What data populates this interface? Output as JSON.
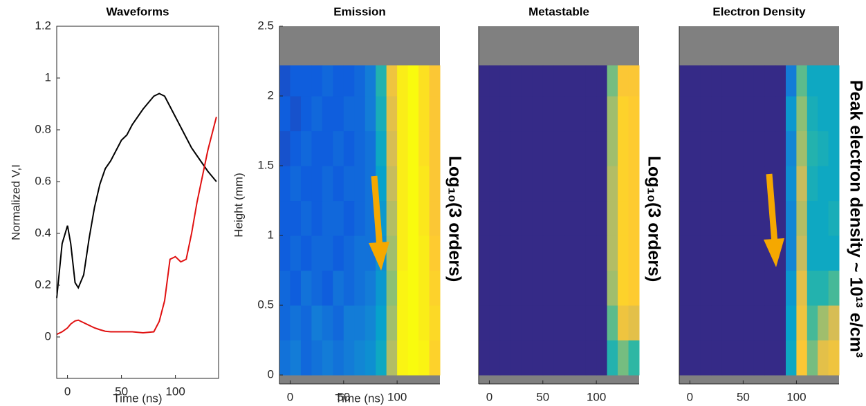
{
  "chart_data": [
    {
      "type": "line",
      "title": "Waveforms",
      "xlabel": "Time (ns)",
      "ylabel": "Normalized V,I",
      "x": [
        -10,
        -5,
        0,
        3,
        7,
        10,
        15,
        20,
        25,
        30,
        35,
        40,
        45,
        50,
        55,
        60,
        70,
        80,
        85,
        90,
        95,
        100,
        105,
        110,
        115,
        120,
        130,
        138
      ],
      "series": [
        {
          "color": "#000000",
          "values": [
            0.15,
            0.36,
            0.43,
            0.36,
            0.21,
            0.19,
            0.24,
            0.38,
            0.5,
            0.59,
            0.65,
            0.68,
            0.72,
            0.76,
            0.78,
            0.82,
            0.88,
            0.93,
            0.94,
            0.93,
            0.89,
            0.85,
            0.81,
            0.77,
            0.73,
            0.7,
            0.64,
            0.6
          ]
        },
        {
          "color": "#e01010",
          "values": [
            0.01,
            0.02,
            0.035,
            0.05,
            0.062,
            0.065,
            0.055,
            0.045,
            0.035,
            0.028,
            0.022,
            0.02,
            0.02,
            0.02,
            0.02,
            0.02,
            0.016,
            0.02,
            0.06,
            0.14,
            0.3,
            0.31,
            0.29,
            0.3,
            0.4,
            0.52,
            0.72,
            0.85
          ]
        }
      ],
      "xlim": [
        -10,
        140
      ],
      "xticks": [
        0,
        50,
        100
      ],
      "ylim": [
        -0.16,
        1.2
      ],
      "yticks": [
        0,
        0.2,
        0.4,
        0.6,
        0.8,
        1,
        1.2
      ]
    },
    {
      "type": "heatmap",
      "title": "Emission",
      "xlabel": "Time (ns)",
      "ylabel": "Height (mm)",
      "annotation": "Log₁₀(3 orders)",
      "xbins": [
        -10,
        0,
        10,
        20,
        30,
        40,
        50,
        60,
        70,
        80,
        90,
        100,
        110,
        120,
        130,
        140
      ],
      "ybins": [
        0,
        0.25,
        0.5,
        0.75,
        1,
        1.25,
        1.5,
        1.75,
        2,
        2.22
      ],
      "z": [
        [
          -2.4,
          -2.3,
          -2.5,
          -2.4,
          -2.3,
          -2.4,
          -2.3,
          -2.2,
          -2.1,
          -1.8,
          -0.9,
          -0.05,
          0,
          -0.05,
          -0.3
        ],
        [
          -2.5,
          -2.4,
          -2.5,
          -2.3,
          -2.4,
          -2.5,
          -2.3,
          -2.3,
          -2.2,
          -1.9,
          -1.0,
          -0.05,
          0,
          -0.1,
          -0.25
        ],
        [
          -2.5,
          -2.6,
          -2.4,
          -2.5,
          -2.6,
          -2.4,
          -2.5,
          -2.4,
          -2.3,
          -2.0,
          -1.1,
          -0.05,
          0,
          -0.1,
          -0.3
        ],
        [
          -2.6,
          -2.5,
          -2.6,
          -2.5,
          -2.5,
          -2.6,
          -2.5,
          -2.4,
          -2.4,
          -2.1,
          -1.0,
          -0.1,
          0,
          -0.1,
          -0.35
        ],
        [
          -2.6,
          -2.6,
          -2.5,
          -2.6,
          -2.5,
          -2.5,
          -2.6,
          -2.5,
          -2.4,
          -2.0,
          -0.9,
          -0.1,
          0,
          -0.15,
          -0.4
        ],
        [
          -2.6,
          -2.5,
          -2.6,
          -2.6,
          -2.5,
          -2.6,
          -2.5,
          -2.5,
          -2.4,
          -1.9,
          -0.8,
          -0.1,
          0,
          -0.15,
          -0.4
        ],
        [
          -2.7,
          -2.6,
          -2.5,
          -2.6,
          -2.6,
          -2.5,
          -2.6,
          -2.5,
          -2.4,
          -1.8,
          -0.7,
          -0.1,
          0,
          -0.2,
          -0.4
        ],
        [
          -2.6,
          -2.7,
          -2.6,
          -2.5,
          -2.6,
          -2.6,
          -2.5,
          -2.5,
          -2.3,
          -1.7,
          -0.6,
          -0.1,
          0,
          -0.2,
          -0.4
        ],
        [
          -2.7,
          -2.6,
          -2.6,
          -2.6,
          -2.5,
          -2.6,
          -2.6,
          -2.5,
          -2.3,
          -1.6,
          -0.5,
          -0.1,
          0,
          -0.2,
          -0.4
        ]
      ],
      "clim": [
        -3,
        0
      ],
      "colormap": [
        "#352a87",
        "#0f5cdd",
        "#1481d6",
        "#06a4ca",
        "#2eb7a4",
        "#87bf77",
        "#d1bb59",
        "#fec832",
        "#f9fb0e"
      ],
      "nodata_color": "#808080",
      "xlim": [
        -10,
        140
      ],
      "xticks": [
        0,
        50,
        100
      ],
      "ylim": [
        -0.064,
        2.5
      ],
      "yticks": [
        0,
        0.5,
        1,
        1.5,
        2,
        2.5
      ]
    },
    {
      "type": "heatmap",
      "title": "Metastable",
      "annotation": "Log₁₀(3 orders)",
      "xbins": [
        -10,
        0,
        10,
        20,
        30,
        40,
        50,
        60,
        70,
        80,
        90,
        100,
        110,
        120,
        130,
        140
      ],
      "ybins": [
        0,
        0.25,
        0.5,
        0.75,
        1,
        1.25,
        1.5,
        1.75,
        2,
        2.22
      ],
      "z": [
        [
          -3,
          -3,
          -3,
          -3,
          -3,
          -3,
          -3,
          -3,
          -3,
          -3,
          -3,
          -3,
          -1.6,
          -1.2,
          -1.5
        ],
        [
          -3,
          -3,
          -3,
          -3,
          -3,
          -3,
          -3,
          -3,
          -3,
          -3,
          -3,
          -3,
          -1.3,
          -0.5,
          -0.6
        ],
        [
          -3,
          -3,
          -3,
          -3,
          -3,
          -3,
          -3,
          -3,
          -3,
          -3,
          -3,
          -3,
          -1.0,
          -0.3,
          -0.35
        ],
        [
          -3,
          -3,
          -3,
          -3,
          -3,
          -3,
          -3,
          -3,
          -3,
          -3,
          -3,
          -3,
          -0.9,
          -0.3,
          -0.35
        ],
        [
          -3,
          -3,
          -3,
          -3,
          -3,
          -3,
          -3,
          -3,
          -3,
          -3,
          -3,
          -3,
          -0.9,
          -0.3,
          -0.35
        ],
        [
          -3,
          -3,
          -3,
          -3,
          -3,
          -3,
          -3,
          -3,
          -3,
          -3,
          -3,
          -3,
          -0.9,
          -0.3,
          -0.35
        ],
        [
          -3,
          -3,
          -3,
          -3,
          -3,
          -3,
          -3,
          -3,
          -3,
          -3,
          -3,
          -3,
          -1.0,
          -0.3,
          -0.35
        ],
        [
          -3,
          -3,
          -3,
          -3,
          -3,
          -3,
          -3,
          -3,
          -3,
          -3,
          -3,
          -3,
          -1.0,
          -0.3,
          -0.35
        ],
        [
          -3,
          -3,
          -3,
          -3,
          -3,
          -3,
          -3,
          -3,
          -3,
          -3,
          -3,
          -3,
          -1.2,
          -0.4,
          -0.4
        ]
      ],
      "clim": [
        -3,
        0
      ],
      "colormap": [
        "#352a87",
        "#0f5cdd",
        "#1481d6",
        "#06a4ca",
        "#2eb7a4",
        "#87bf77",
        "#d1bb59",
        "#fec832",
        "#f9fb0e"
      ],
      "nodata_color": "#808080",
      "xlim": [
        -10,
        140
      ],
      "xticks": [
        0,
        50,
        100
      ],
      "ylim": [
        -0.064,
        2.5
      ]
    },
    {
      "type": "heatmap",
      "title": "Electron Density",
      "annotation": "Peak electron density ~ 10¹³ e/cm³",
      "xbins": [
        -10,
        0,
        10,
        20,
        30,
        40,
        50,
        60,
        70,
        80,
        90,
        100,
        110,
        120,
        130,
        140
      ],
      "ybins": [
        0,
        0.25,
        0.5,
        0.75,
        1,
        1.25,
        1.5,
        1.75,
        2,
        2.22
      ],
      "z": [
        [
          -3,
          -3,
          -3,
          -3,
          -3,
          -3,
          -3,
          -3,
          -3,
          -3,
          -1.8,
          -0.4,
          -1.2,
          -0.6,
          -0.5
        ],
        [
          -3,
          -3,
          -3,
          -3,
          -3,
          -3,
          -3,
          -3,
          -3,
          -3,
          -1.9,
          -0.5,
          -1.4,
          -1.0,
          -0.7
        ],
        [
          -3,
          -3,
          -3,
          -3,
          -3,
          -3,
          -3,
          -3,
          -3,
          -3,
          -2.0,
          -0.6,
          -1.6,
          -1.6,
          -1.4
        ],
        [
          -3,
          -3,
          -3,
          -3,
          -3,
          -3,
          -3,
          -3,
          -3,
          -3,
          -2.2,
          -0.8,
          -1.8,
          -1.8,
          -1.8
        ],
        [
          -3,
          -3,
          -3,
          -3,
          -3,
          -3,
          -3,
          -3,
          -3,
          -3,
          -2.2,
          -0.9,
          -1.8,
          -1.8,
          -1.7
        ],
        [
          -3,
          -3,
          -3,
          -3,
          -3,
          -3,
          -3,
          -3,
          -3,
          -3,
          -2.1,
          -0.8,
          -1.7,
          -1.8,
          -1.8
        ],
        [
          -3,
          -3,
          -3,
          -3,
          -3,
          -3,
          -3,
          -3,
          -3,
          -3,
          -2.2,
          -1.0,
          -1.6,
          -1.7,
          -1.8
        ],
        [
          -3,
          -3,
          -3,
          -3,
          -3,
          -3,
          -3,
          -3,
          -3,
          -3,
          -2.0,
          -1.1,
          -1.7,
          -1.8,
          -1.8
        ],
        [
          -3,
          -3,
          -3,
          -3,
          -3,
          -3,
          -3,
          -3,
          -3,
          -3,
          -2.3,
          -1.3,
          -1.8,
          -1.8,
          -1.8
        ]
      ],
      "clim": [
        -3,
        0
      ],
      "colormap": [
        "#352a87",
        "#0f5cdd",
        "#1481d6",
        "#06a4ca",
        "#2eb7a4",
        "#87bf77",
        "#d1bb59",
        "#fec832",
        "#f9fb0e"
      ],
      "nodata_color": "#808080",
      "xlim": [
        -10,
        140
      ],
      "xticks": [
        0,
        50,
        100
      ],
      "ylim": [
        -0.064,
        2.5
      ]
    }
  ]
}
